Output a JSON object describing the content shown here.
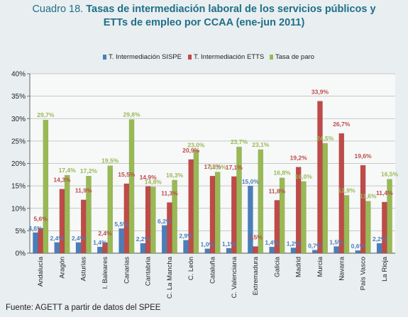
{
  "title": {
    "label": "Cuadro 18.",
    "main": "Tasas de intermediación laboral de los servicios públicos y",
    "line2": "ETTs de empleo por CCAA (ene-jun 2011)"
  },
  "source": "Fuente: AGETT a partir de datos del SPEE",
  "chart_data": {
    "type": "bar",
    "categories": [
      "Andalucía",
      "Aragón",
      "Asturias",
      "I. Baleares",
      "Canarias",
      "Cantabria",
      "C. La Mancha",
      "C. León",
      "Cataluña",
      "C. Valenciana",
      "Extremadura",
      "Galicia",
      "Madrid",
      "Murcia",
      "Navarra",
      "País Vasco",
      "La Rioja"
    ],
    "series": [
      {
        "name": "T. Intermediación SISPE",
        "color": "#4a7ebb",
        "values": [
          4.6,
          2.4,
          2.4,
          1.4,
          5.5,
          2.2,
          6.2,
          2.9,
          1.0,
          1.1,
          15.0,
          1.4,
          1.2,
          0.7,
          1.5,
          0.6,
          2.2
        ],
        "labels": [
          "4,6%",
          "2,4%",
          "2,4%",
          "1,4%",
          "5,5%",
          "2,2%",
          "6,2%",
          "2,9%",
          "1,0%",
          "1,1%",
          "15,0%",
          "1,4%",
          "1,2%",
          "0,7%",
          "1,5%",
          "0,6%",
          "2,2%"
        ]
      },
      {
        "name": "T. Intermediación ETTS",
        "color": "#be4b48",
        "values": [
          5.6,
          14.3,
          11.9,
          2.4,
          15.5,
          14.9,
          11.3,
          20.9,
          17.2,
          17.1,
          1.5,
          11.8,
          19.2,
          33.9,
          26.7,
          19.6,
          11.4
        ],
        "labels": [
          "5,6%",
          "14,3%",
          "11,9%",
          "2,4%",
          "15,5%",
          "14,9%",
          "11,3%",
          "20,9%",
          "17,2%",
          "17,1%",
          "1,5%",
          "11,8%",
          "19,2%",
          "33,9%",
          "26,7%",
          "19,6%",
          "11,4%"
        ]
      },
      {
        "name": "Tasa de paro",
        "color": "#98b954",
        "values": [
          29.7,
          17.4,
          17.2,
          19.5,
          29.8,
          14.8,
          16.3,
          23.0,
          18.1,
          23.7,
          23.1,
          16.8,
          16.0,
          24.5,
          12.9,
          11.6,
          16.5
        ],
        "labels": [
          "29,7%",
          "17,4%",
          "17,2%",
          "19,5%",
          "29,8%",
          "14,8%",
          "16,3%",
          "23,0%",
          "18,1%",
          "23,7%",
          "23,1%",
          "16,8%",
          "16,0%",
          "24,5%",
          "12,9%",
          "11,6%",
          "16,5%"
        ]
      }
    ],
    "ylim": [
      0,
      40
    ],
    "yticks": [
      "0%",
      "5%",
      "10%",
      "15%",
      "20%",
      "25%",
      "30%",
      "35%",
      "40%"
    ],
    "grid": true,
    "legend_position": "top",
    "xlabel": "",
    "ylabel": ""
  }
}
